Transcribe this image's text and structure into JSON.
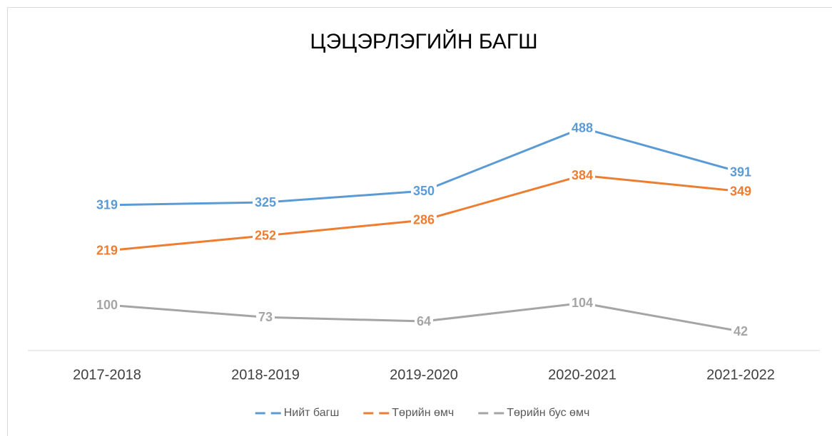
{
  "chart_data": {
    "type": "line",
    "title": "ЦЭЦЭРЛЭГИЙН БАГШ",
    "categories": [
      "2017-2018",
      "2018-2019",
      "2019-2020",
      "2020-2021",
      "2021-2022"
    ],
    "series": [
      {
        "name": "Нийт багш",
        "color": "#5b9bd5",
        "values": [
          319,
          325,
          350,
          488,
          391
        ]
      },
      {
        "name": "Төрийн өмч",
        "color": "#ed7d31",
        "values": [
          219,
          252,
          286,
          384,
          349
        ]
      },
      {
        "name": "Төрийн бус өмч",
        "color": "#a5a5a5",
        "values": [
          100,
          73,
          64,
          104,
          42
        ]
      }
    ],
    "ylim": [
      0,
      600
    ],
    "grid": false,
    "legend": "bottom"
  }
}
